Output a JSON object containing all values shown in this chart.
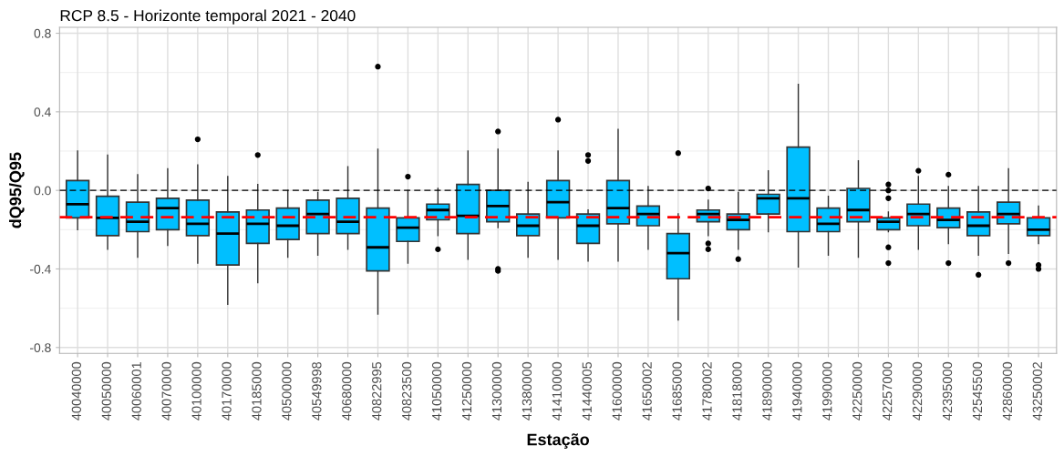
{
  "chart_data": {
    "type": "box",
    "title": "RCP 8.5 - Horizonte temporal 2021 - 2040",
    "xlabel": "Estação",
    "ylabel": "dQ95/Q95",
    "categories": [
      "40040000",
      "40050000",
      "40060001",
      "40070000",
      "40100000",
      "40170000",
      "40185000",
      "40500000",
      "40549998",
      "40680000",
      "40822995",
      "40823500",
      "41050000",
      "41250000",
      "41300000",
      "41380000",
      "41410000",
      "41440005",
      "41600000",
      "41650002",
      "41685000",
      "41780002",
      "41818000",
      "41890000",
      "41940000",
      "41990000",
      "42250000",
      "42257000",
      "42290000",
      "42395000",
      "42545500",
      "42860000",
      "43250002"
    ],
    "color": "#00bfff",
    "grid": true,
    "marker": "circle",
    "ylim": [
      -0.83,
      0.83
    ],
    "yticks": [
      {
        "value": -0.8,
        "label": "-0.8"
      },
      {
        "value": -0.4,
        "label": "-0.4"
      },
      {
        "value": 0.0,
        "label": "0.0"
      },
      {
        "value": 0.4,
        "label": "0.4"
      },
      {
        "value": 0.8,
        "label": "0.8"
      }
    ],
    "ref_lines": [
      {
        "axis": "y",
        "value": 0,
        "color": "#000000",
        "line_style": "dashed"
      },
      {
        "axis": "y",
        "value": -0.136,
        "color": "#ff0000",
        "line_style": "dashed"
      }
    ],
    "boxes": [
      {
        "low": -0.2,
        "q1": -0.14,
        "median": -0.07,
        "q3": 0.05,
        "high": 0.2
      },
      {
        "low": -0.3,
        "q1": -0.23,
        "median": -0.14,
        "q3": -0.03,
        "high": 0.18
      },
      {
        "low": -0.34,
        "q1": -0.21,
        "median": -0.16,
        "q3": -0.06,
        "high": 0.08
      },
      {
        "low": -0.28,
        "q1": -0.2,
        "median": -0.09,
        "q3": -0.04,
        "high": 0.11
      },
      {
        "low": -0.37,
        "q1": -0.23,
        "median": -0.17,
        "q3": -0.05,
        "high": 0.13,
        "outliers": [
          0.26
        ]
      },
      {
        "low": -0.58,
        "q1": -0.38,
        "median": -0.22,
        "q3": -0.11,
        "high": 0.07
      },
      {
        "low": -0.47,
        "q1": -0.27,
        "median": -0.17,
        "q3": -0.1,
        "high": 0.03,
        "outliers": [
          0.18
        ]
      },
      {
        "low": -0.34,
        "q1": -0.25,
        "median": -0.18,
        "q3": -0.09,
        "high": 0.0
      },
      {
        "low": -0.33,
        "q1": -0.22,
        "median": -0.12,
        "q3": -0.05,
        "high": -0.01
      },
      {
        "low": -0.3,
        "q1": -0.22,
        "median": -0.16,
        "q3": -0.04,
        "high": 0.12
      },
      {
        "low": -0.63,
        "q1": -0.41,
        "median": -0.29,
        "q3": -0.09,
        "high": 0.21,
        "outliers": [
          0.63
        ]
      },
      {
        "low": -0.37,
        "q1": -0.26,
        "median": -0.19,
        "q3": -0.14,
        "high": 0.0,
        "outliers": [
          0.07
        ]
      },
      {
        "low": -0.23,
        "q1": -0.15,
        "median": -0.1,
        "q3": -0.07,
        "high": 0.01,
        "outliers": [
          -0.3
        ]
      },
      {
        "low": -0.35,
        "q1": -0.22,
        "median": -0.13,
        "q3": 0.03,
        "high": 0.2
      },
      {
        "low": -0.19,
        "q1": -0.16,
        "median": -0.08,
        "q3": 0.0,
        "high": 0.21,
        "outliers": [
          0.3,
          -0.4,
          -0.41
        ]
      },
      {
        "low": -0.34,
        "q1": -0.23,
        "median": -0.18,
        "q3": -0.12,
        "high": 0.04
      },
      {
        "low": -0.35,
        "q1": -0.14,
        "median": -0.06,
        "q3": 0.05,
        "high": 0.2,
        "outliers": [
          0.36
        ]
      },
      {
        "low": -0.36,
        "q1": -0.27,
        "median": -0.18,
        "q3": -0.12,
        "high": -0.1,
        "outliers": [
          0.18,
          0.15
        ]
      },
      {
        "low": -0.36,
        "q1": -0.17,
        "median": -0.09,
        "q3": 0.05,
        "high": 0.31
      },
      {
        "low": -0.3,
        "q1": -0.18,
        "median": -0.12,
        "q3": -0.08,
        "high": 0.02
      },
      {
        "low": -0.66,
        "q1": -0.45,
        "median": -0.32,
        "q3": -0.22,
        "high": -0.12,
        "outliers": [
          0.19
        ]
      },
      {
        "low": -0.23,
        "q1": -0.16,
        "median": -0.12,
        "q3": -0.1,
        "high": -0.05,
        "outliers": [
          0.01,
          -0.27,
          -0.3
        ]
      },
      {
        "low": -0.3,
        "q1": -0.2,
        "median": -0.15,
        "q3": -0.12,
        "high": -0.01,
        "outliers": [
          -0.35
        ]
      },
      {
        "low": -0.21,
        "q1": -0.12,
        "median": -0.04,
        "q3": -0.02,
        "high": 0.1
      },
      {
        "low": -0.39,
        "q1": -0.21,
        "median": -0.04,
        "q3": 0.22,
        "high": 0.54
      },
      {
        "low": -0.33,
        "q1": -0.21,
        "median": -0.17,
        "q3": -0.09,
        "high": -0.03
      },
      {
        "low": -0.34,
        "q1": -0.16,
        "median": -0.1,
        "q3": 0.01,
        "high": 0.15
      },
      {
        "low": -0.21,
        "q1": -0.2,
        "median": -0.16,
        "q3": -0.14,
        "high": -0.11,
        "outliers": [
          0.03,
          0.0,
          -0.04,
          -0.29,
          -0.37
        ]
      },
      {
        "low": -0.3,
        "q1": -0.18,
        "median": -0.12,
        "q3": -0.07,
        "high": 0.07,
        "outliers": [
          0.1
        ]
      },
      {
        "low": -0.27,
        "q1": -0.19,
        "median": -0.15,
        "q3": -0.09,
        "high": 0.02,
        "outliers": [
          0.08,
          -0.37
        ]
      },
      {
        "low": -0.33,
        "q1": -0.23,
        "median": -0.18,
        "q3": -0.11,
        "high": 0.02,
        "outliers": [
          -0.43
        ]
      },
      {
        "low": -0.32,
        "q1": -0.17,
        "median": -0.12,
        "q3": -0.06,
        "high": 0.11,
        "outliers": [
          -0.37
        ]
      },
      {
        "low": -0.27,
        "q1": -0.23,
        "median": -0.2,
        "q3": -0.14,
        "high": -0.08,
        "outliers": [
          -0.38,
          -0.4
        ]
      }
    ]
  }
}
